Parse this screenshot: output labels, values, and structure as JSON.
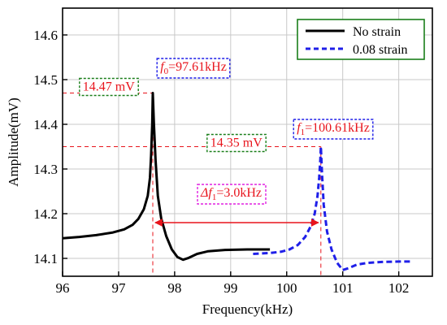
{
  "chart_data": {
    "type": "line",
    "xlabel": "Frequency(kHz)",
    "ylabel": "Amplitude(mV)",
    "xlim": [
      96,
      102.6
    ],
    "ylim": [
      14.06,
      14.66
    ],
    "xticks": [
      96,
      97,
      98,
      99,
      100,
      101,
      102
    ],
    "yticks": [
      14.1,
      14.2,
      14.3,
      14.4,
      14.5,
      14.6
    ],
    "xtick_labels": [
      "96",
      "97",
      "98",
      "99",
      "100",
      "101",
      "102"
    ],
    "ytick_labels": [
      "14.1",
      "14.2",
      "14.3",
      "14.4",
      "14.5",
      "14.6"
    ],
    "grid": true,
    "legend_position": "top-right",
    "series": [
      {
        "name": "No strain",
        "style": "solid",
        "color": "#000000",
        "points": [
          [
            96.0,
            14.145
          ],
          [
            96.3,
            14.148
          ],
          [
            96.6,
            14.152
          ],
          [
            96.9,
            14.158
          ],
          [
            97.1,
            14.165
          ],
          [
            97.25,
            14.175
          ],
          [
            97.35,
            14.188
          ],
          [
            97.45,
            14.21
          ],
          [
            97.52,
            14.24
          ],
          [
            97.56,
            14.28
          ],
          [
            97.58,
            14.33
          ],
          [
            97.6,
            14.4
          ],
          [
            97.61,
            14.47
          ],
          [
            97.63,
            14.4
          ],
          [
            97.66,
            14.32
          ],
          [
            97.7,
            14.24
          ],
          [
            97.76,
            14.19
          ],
          [
            97.85,
            14.15
          ],
          [
            97.95,
            14.12
          ],
          [
            98.05,
            14.103
          ],
          [
            98.15,
            14.097
          ],
          [
            98.25,
            14.101
          ],
          [
            98.4,
            14.11
          ],
          [
            98.6,
            14.116
          ],
          [
            98.9,
            14.119
          ],
          [
            99.3,
            14.12
          ],
          [
            99.7,
            14.12
          ]
        ]
      },
      {
        "name": "0.08 strain",
        "style": "dashed",
        "color": "#1f1fe8",
        "points": [
          [
            99.4,
            14.11
          ],
          [
            99.7,
            14.112
          ],
          [
            99.9,
            14.115
          ],
          [
            100.05,
            14.12
          ],
          [
            100.2,
            14.13
          ],
          [
            100.33,
            14.148
          ],
          [
            100.43,
            14.172
          ],
          [
            100.5,
            14.2
          ],
          [
            100.55,
            14.24
          ],
          [
            100.58,
            14.28
          ],
          [
            100.6,
            14.32
          ],
          [
            100.61,
            14.35
          ],
          [
            100.63,
            14.29
          ],
          [
            100.66,
            14.22
          ],
          [
            100.72,
            14.16
          ],
          [
            100.8,
            14.12
          ],
          [
            100.9,
            14.09
          ],
          [
            101.0,
            14.074
          ],
          [
            101.1,
            14.078
          ],
          [
            101.25,
            14.086
          ],
          [
            101.45,
            14.09
          ],
          [
            101.7,
            14.092
          ],
          [
            102.0,
            14.093
          ],
          [
            102.2,
            14.093
          ]
        ]
      }
    ],
    "annotations": {
      "f0": {
        "sym": "f",
        "sub": "0",
        "text": "=97.61kHz",
        "x": 97.61,
        "color": "#1f1fe8"
      },
      "a0": {
        "text": "14.47 mV",
        "y": 14.47,
        "color": "#1a7f1a"
      },
      "f1": {
        "sym": "f",
        "sub": "1",
        "text": "=100.61kHz",
        "x": 100.61,
        "color": "#1f1fe8"
      },
      "a1": {
        "text": "14.35 mV",
        "y": 14.35,
        "color": "#1a7f1a"
      },
      "df": {
        "sym": "Δf",
        "sub": "1",
        "text": "=3.0kHz",
        "y": 14.18,
        "x_from": 97.61,
        "x_to": 100.61,
        "color": "#e020e0"
      }
    },
    "annotation_color": "#e8141c"
  }
}
